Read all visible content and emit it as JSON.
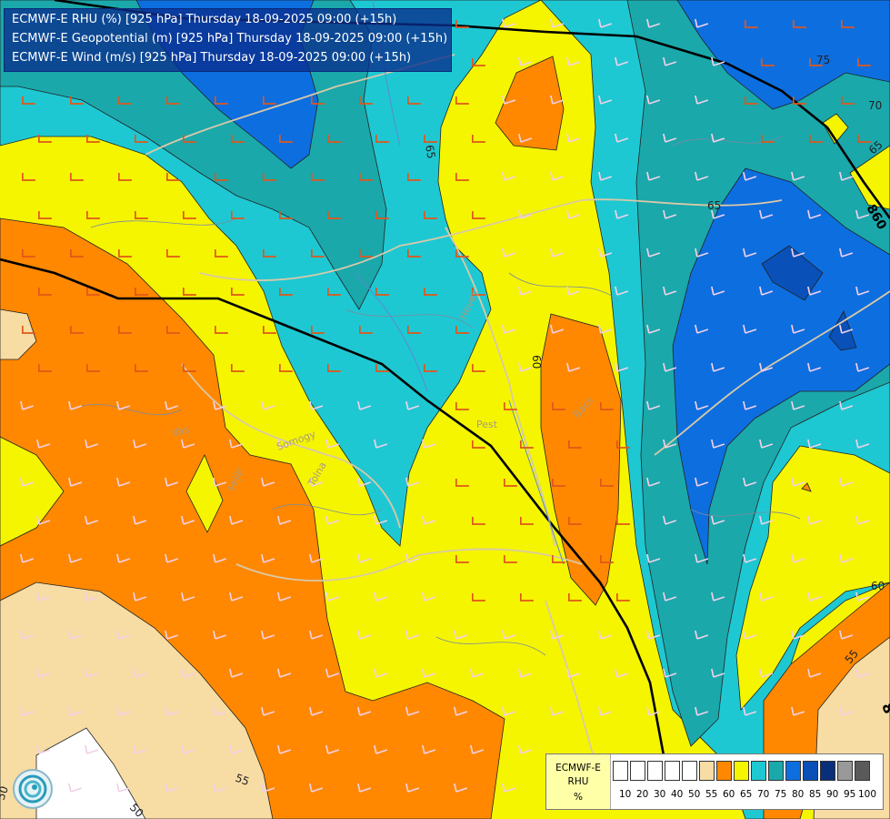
{
  "header": {
    "lines": [
      "ECMWF-E RHU (%) [925 hPa] Thursday 18-09-2025 09:00 (+15h)",
      "ECMWF-E Geopotential (m) [925 hPa] Thursday 18-09-2025 09:00 (+15h)",
      "ECMWF-E Wind (m/s) [925 hPa] Thursday 18-09-2025 09:00 (+15h)"
    ]
  },
  "map_labels": {
    "contour_labels": [
      "65",
      "75",
      "70",
      "65",
      "60",
      "65",
      "60",
      "55",
      "50",
      "50",
      "55"
    ],
    "geopotential_label": "860",
    "geopotential_edge": "8",
    "place_labels": [
      "Pest",
      "Bács",
      "Heves",
      "Vas",
      "Somogy",
      "Tolna",
      "Fejér"
    ]
  },
  "legend": {
    "title": [
      "ECMWF-E",
      "RHU",
      "%"
    ],
    "ticks": [
      "10",
      "20",
      "30",
      "40",
      "50",
      "55",
      "60",
      "65",
      "70",
      "75",
      "80",
      "85",
      "90",
      "95",
      "100"
    ],
    "colors": [
      "#ffffff",
      "#ffffff",
      "#ffffff",
      "#ffffff",
      "#ffffff",
      "#f7dca4",
      "#ff8800",
      "#f5f500",
      "#1ec8d2",
      "#1aa8ab",
      "#0d6ee0",
      "#0950b8",
      "#0a2f7a",
      "#999999",
      "#5a5a5a"
    ]
  },
  "colors": {
    "rh_below_55": "#f7dca4",
    "rh_55_60": "#ff8800",
    "rh_60_65": "#f5f500",
    "rh_65_70": "#1ec8d2",
    "rh_70_75": "#1aa8ab",
    "rh_75_80": "#0d6ee0",
    "rh_80_85": "#0950b8"
  },
  "icons": [
    "wind-barb-icon",
    "ecmwf-logo-icon"
  ]
}
